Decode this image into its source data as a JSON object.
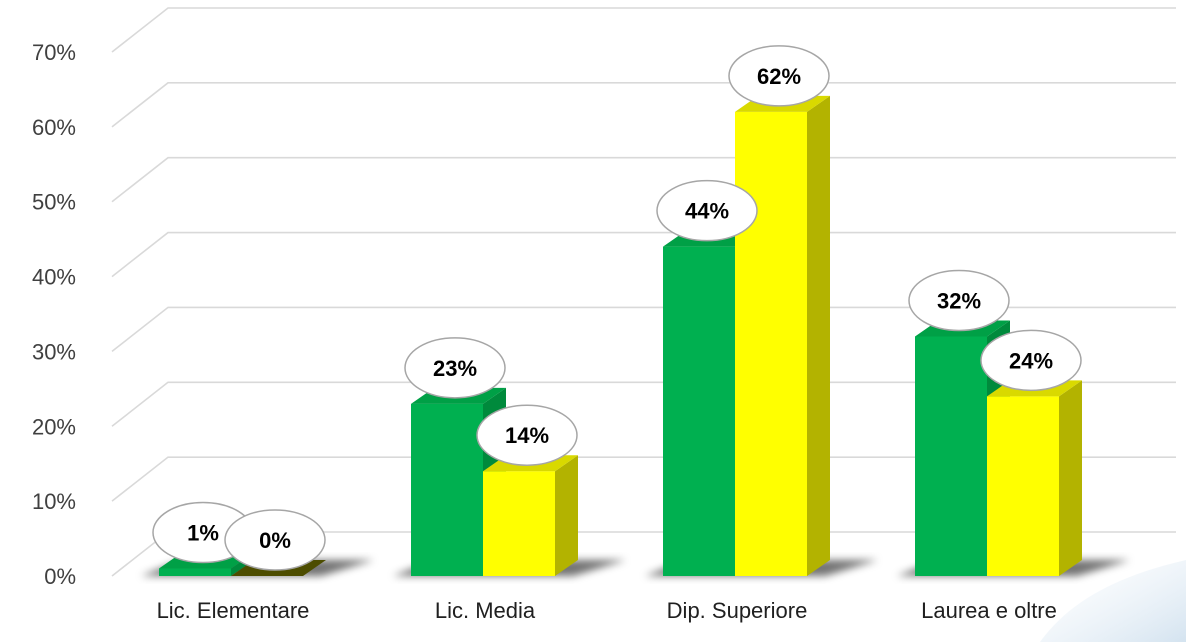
{
  "chart_data": {
    "type": "bar",
    "title": "",
    "xlabel": "",
    "ylabel": "",
    "categories": [
      "Lic. Elementare",
      "Lic. Media",
      "Dip. Superiore",
      "Laurea e oltre"
    ],
    "series": [
      {
        "values": [
          1,
          23,
          44,
          32
        ],
        "labels": [
          "1%",
          "23%",
          "44%",
          "32%"
        ],
        "color": "#00b050",
        "side_color": "#008a3c",
        "top_color": "#00a046"
      },
      {
        "values": [
          0,
          14,
          62,
          24
        ],
        "labels": [
          "0%",
          "14%",
          "62%",
          "24%"
        ],
        "color": "#ffff00",
        "side_color": "#b3b300",
        "top_color": "#d9d900"
      }
    ],
    "ylim": [
      0,
      70
    ],
    "yticks": [
      0,
      10,
      20,
      30,
      40,
      50,
      60,
      70
    ],
    "ytick_labels": [
      "0%",
      "10%",
      "20%",
      "30%",
      "40%",
      "50%",
      "60%",
      "70%"
    ],
    "grid": true,
    "legend": "none",
    "style": "3d-column"
  }
}
